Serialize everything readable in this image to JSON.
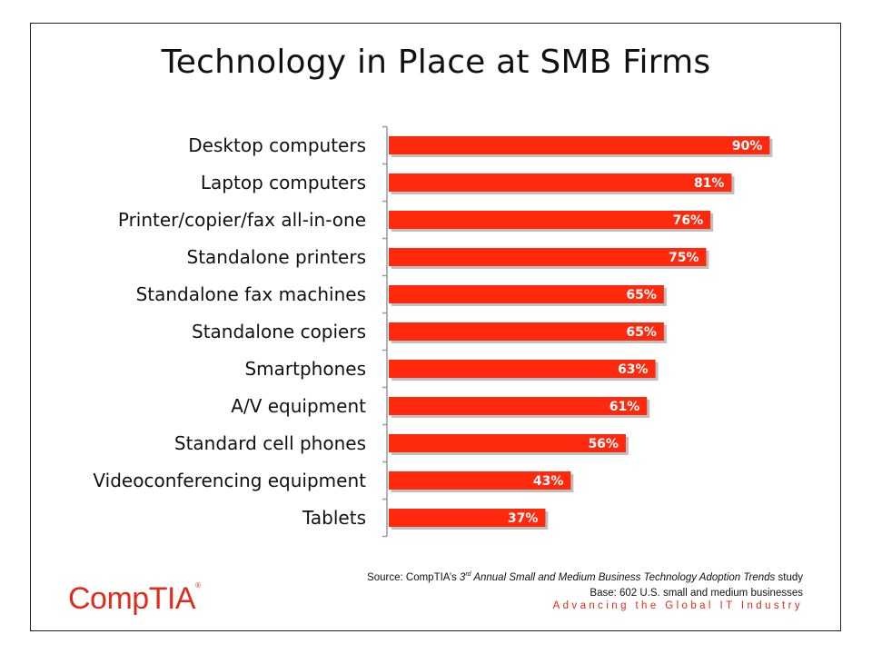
{
  "colors": {
    "bar": "#ff2a0e",
    "bar_shadow": "#bfbfbf",
    "accent": "#e02d1b",
    "axis": "#999999"
  },
  "chart_data": {
    "type": "bar",
    "orientation": "horizontal",
    "title": "Technology in Place at SMB Firms",
    "categories": [
      "Desktop computers",
      "Laptop computers",
      "Printer/copier/fax all-in-one",
      "Standalone printers",
      "Standalone fax machines",
      "Standalone copiers",
      "Smartphones",
      "A/V equipment",
      "Standard cell phones",
      "Videoconferencing equipment",
      "Tablets"
    ],
    "values": [
      90,
      81,
      76,
      75,
      65,
      65,
      63,
      61,
      56,
      43,
      37
    ],
    "value_labels": [
      "90%",
      "81%",
      "76%",
      "75%",
      "65%",
      "65%",
      "63%",
      "61%",
      "56%",
      "43%",
      "37%"
    ],
    "xlim": [
      0,
      100
    ],
    "grid": false,
    "legend": "none"
  },
  "footer": {
    "source_prefix": "Source: CompTIA’s ",
    "source_ordinal_num": "3",
    "source_ordinal_sup": "rd",
    "source_study_title": " Annual Small and Medium Business Technology Adoption Trends",
    "source_suffix": " study",
    "base": "Base: 602 U.S. small and medium businesses",
    "tagline": "Advancing the Global IT Industry"
  },
  "logo": {
    "text": "CompTIA",
    "reg_mark": "®"
  }
}
